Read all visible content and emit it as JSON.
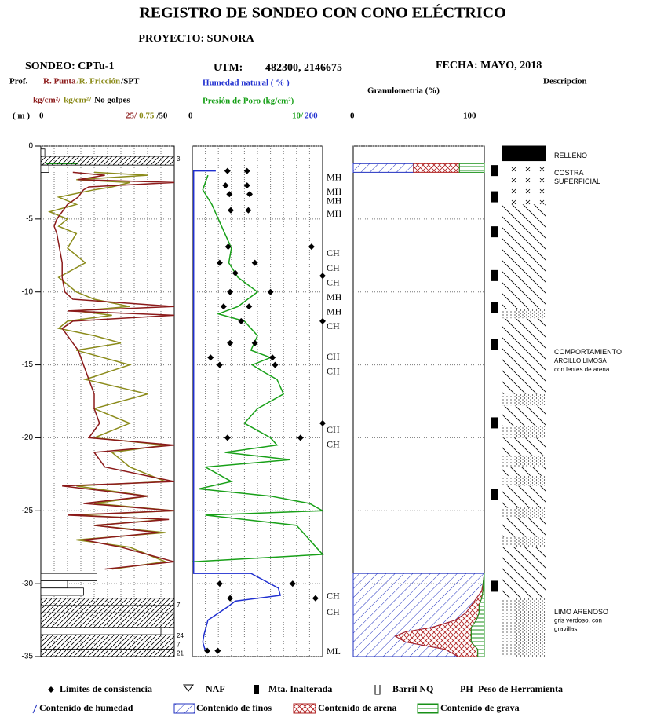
{
  "title": "REGISTRO DE SONDEO CON CONO ELÉCTRICO",
  "project": "PROYECTO: SONORA",
  "sondeo": "SONDEO: CPTu-1",
  "utm_label": "UTM:",
  "utm": "482300, 2146675",
  "fecha": "FECHA: MAYO, 2018",
  "prof_label": "Prof.",
  "depth_unit": "( m )",
  "granulometria_label": "Granulometria (%)",
  "description_label": "Descripcion",
  "chart_data": {
    "type": "log",
    "ylim": [
      0,
      -35
    ],
    "yticks": [
      0,
      -5,
      -10,
      -15,
      -20,
      -25,
      -30,
      -35
    ],
    "naf_depth": -1.2,
    "cpt": {
      "series": [
        {
          "name": "R. Punta",
          "unit": "kg/cm²/",
          "color": "#8b1a1a",
          "xmin": 0,
          "xmax": {
            "value": 25,
            "label": "25/"
          },
          "depth": [
            -1.8,
            -2,
            -2.3,
            -2.5,
            -2.8,
            -3,
            -3.5,
            -4,
            -4.5,
            -5,
            -5.5,
            -6,
            -7,
            -8,
            -9,
            -10,
            -10.5,
            -11,
            -11.3,
            -11.6,
            -12,
            -12.5,
            -13,
            -13.5,
            -14,
            -15,
            -16,
            -17,
            -18,
            -19,
            -20,
            -20.5,
            -21,
            -22,
            -23,
            -23.3,
            -24,
            -24.5,
            -25,
            -25.3,
            -25.6,
            -26,
            -26.5,
            -27,
            -27.5,
            -28,
            -28.5,
            -29
          ],
          "values": [
            6,
            12,
            7,
            25,
            9,
            8,
            7,
            5,
            4,
            3,
            2.5,
            3,
            3.5,
            4,
            4,
            4.5,
            6,
            25,
            5,
            25,
            6,
            4,
            5,
            6,
            7,
            8,
            9,
            10,
            10,
            11,
            9,
            25,
            10,
            12,
            25,
            4,
            20,
            8,
            25,
            5,
            24,
            10,
            22,
            8,
            15,
            20,
            25,
            12
          ]
        },
        {
          "name": "/R. Fricción",
          "unit": "kg/cm²/",
          "color": "#8b8b1a",
          "xmin": 0,
          "xmax": {
            "value": 0.75,
            "label": "0.75"
          },
          "depth": [
            -1.8,
            -2,
            -2.3,
            -2.5,
            -2.8,
            -3,
            -3.5,
            -4,
            -4.5,
            -5,
            -5.5,
            -6,
            -7,
            -8,
            -9,
            -10,
            -10.5,
            -11,
            -11.3,
            -11.6,
            -12,
            -12.5,
            -13,
            -13.5,
            -14,
            -15,
            -16,
            -17,
            -18,
            -19,
            -20,
            -20.5,
            -21,
            -22,
            -23,
            -23.3,
            -24,
            -24.5,
            -25,
            -25.3,
            -25.6,
            -26,
            -26.5,
            -27,
            -27.5,
            -28,
            -28.5,
            -29
          ],
          "values": [
            0.3,
            0.6,
            0.2,
            0.5,
            0.4,
            0.3,
            0.1,
            0.2,
            0.05,
            0.15,
            0.1,
            0.2,
            0.15,
            0.25,
            0.1,
            0.2,
            0.3,
            0.5,
            0.2,
            0.4,
            0.15,
            0.1,
            0.3,
            0.45,
            0.2,
            0.5,
            0.25,
            0.6,
            0.3,
            0.5,
            0.3,
            0.7,
            0.4,
            0.5,
            0.7,
            0.2,
            0.6,
            0.3,
            0.75,
            0.2,
            0.7,
            0.3,
            0.7,
            0.2,
            0.5,
            0.6,
            0.7,
            0.4
          ]
        }
      ]
    },
    "spt": {
      "name": "/SPT",
      "unit": "No golpes",
      "color": "#000000",
      "xmin": 0,
      "xmax": {
        "value": 50,
        "label": "/50"
      },
      "top": [
        -0.2,
        -0.7,
        -1.3,
        -29.3,
        -29.8,
        -30.3,
        -31,
        -31.5,
        -32,
        -32.5,
        -33,
        -33.5,
        -34,
        -34.5
      ],
      "bottom": [
        -0.7,
        -1.3,
        -1.8,
        -29.8,
        -30.3,
        -30.8,
        -31.5,
        -32,
        -32.5,
        -33,
        -33.5,
        -34,
        -34.5,
        -35
      ],
      "values": [
        1.5,
        50,
        3,
        21,
        10,
        16,
        50,
        50,
        50,
        50,
        45,
        50,
        50,
        50
      ],
      "notes": {
        "depth": [
          -0.9,
          -31.5,
          -33.6,
          -34.2,
          -34.8
        ],
        "labels": [
          "3",
          "7",
          "24",
          "7",
          "21"
        ]
      }
    },
    "humidity": {
      "name": "Humedad natural ( % )",
      "color": "#1f2fd0",
      "xmin": 0,
      "xmax": 200,
      "depth": [
        -1.7,
        -1.7,
        -29.3,
        -29.3,
        -30.3,
        -30.8,
        -31.2,
        -31.6,
        -32.5,
        -33.5,
        -34,
        -34.6
      ],
      "values": [
        36,
        2,
        2,
        90,
        132,
        135,
        66,
        54,
        24,
        18,
        16,
        20
      ]
    },
    "pore": {
      "name": "Presión de Poro  (kg/cm²)",
      "color": "#18a018",
      "xmin": 0,
      "xmax": {
        "value": 10,
        "label": "10/"
      },
      "depth": [
        -2,
        -3,
        -4,
        -5,
        -6,
        -7,
        -8,
        -9,
        -10,
        -11,
        -11.5,
        -12,
        -13,
        -14,
        -14.5,
        -15,
        -15.5,
        -16,
        -17,
        -17.5,
        -18,
        -19,
        -20,
        -20.5,
        -21,
        -21.5,
        -22,
        -23,
        -23.5,
        -24,
        -24.5,
        -25,
        -25.3,
        -26,
        -27,
        -28,
        -28.5
      ],
      "values": [
        1.2,
        0.8,
        1.5,
        2,
        2.5,
        3,
        2.8,
        3.5,
        5,
        3.5,
        2,
        4,
        5,
        4.5,
        6,
        4.6,
        5.5,
        6.5,
        7,
        6,
        5,
        4,
        6,
        6.5,
        2.5,
        7.5,
        1,
        3,
        0.5,
        6,
        9,
        10,
        1,
        8,
        9,
        10,
        0
      ]
    },
    "limits": {
      "depth": [
        -1.7,
        -1.7,
        -2.7,
        -2.7,
        -3.3,
        -3.3,
        -4.4,
        -4.4,
        -6.9,
        -6.9,
        -8,
        -8,
        -8.7,
        -8.9,
        -10,
        -10,
        -11,
        -11,
        -12,
        -12,
        -13.5,
        -13.5,
        -14.5,
        -14.5,
        -15,
        -15,
        -19,
        -20,
        -20,
        -30,
        -30,
        -31,
        -31,
        -34.6,
        -34.6
      ],
      "values": [
        54,
        84,
        51,
        84,
        57,
        88,
        59,
        86,
        55,
        183,
        42,
        96,
        66,
        200,
        58,
        120,
        48,
        87,
        75,
        200,
        58,
        96,
        28,
        123,
        42,
        127,
        200,
        54,
        166,
        42,
        154,
        58,
        189,
        23,
        39
      ]
    },
    "classes": {
      "depth": [
        -2.2,
        -3.2,
        -3.8,
        -4.7,
        -7.4,
        -8.4,
        -9.4,
        -10.4,
        -11.4,
        -12.4,
        -14.5,
        -15.5,
        -19.5,
        -20.5,
        -30.9,
        -32,
        -34.7
      ],
      "labels": [
        "MH",
        "MH",
        "MH",
        "MH",
        "CH",
        "CH",
        "CH",
        "MH",
        "MH",
        "CH",
        "CH",
        "CH",
        "CH",
        "CH",
        "CH",
        "CH",
        "ML"
      ]
    },
    "grain": {
      "xmin": 0,
      "xmax": 100,
      "samples": [
        {
          "depth": [
            -1.2,
            -1.8
          ],
          "fines": [
            46,
            46
          ],
          "sand": [
            35,
            35
          ]
        },
        {
          "depth": [
            -29.3,
            -30,
            -30.5,
            -31,
            -31.5,
            -32,
            -32.5,
            -33,
            -33.3,
            -33.6,
            -34,
            -34.5,
            -35
          ],
          "fines": [
            100,
            99,
            98,
            94,
            90,
            86,
            78,
            60,
            40,
            32,
            40,
            70,
            80
          ],
          "sand": [
            0,
            0,
            1,
            4,
            6,
            10,
            16,
            30,
            50,
            58,
            50,
            25,
            15
          ]
        }
      ]
    },
    "description": {
      "layers": [
        {
          "top": 0,
          "bottom": -1,
          "pattern": "fill",
          "lines": [
            "RELLENO"
          ]
        },
        {
          "top": -1,
          "bottom": -4,
          "pattern": "cross",
          "lines": [
            "COSTRA",
            "SUPERFICIAL"
          ]
        },
        {
          "top": -4,
          "bottom": -31,
          "pattern": "hatch",
          "lines": [
            "COMPORTAMIENTO",
            "ARCILLO LIMOSA",
            "con lentes de arena."
          ]
        },
        {
          "top": -31,
          "bottom": -35,
          "pattern": "dots",
          "lines": [
            "LIMO ARENOSO",
            "gris verdoso, con",
            "gravillas."
          ]
        }
      ],
      "lenses": {
        "top": [
          -11.2,
          -17,
          -19.2,
          -21.2,
          -22.6,
          -24.8,
          -26.8
        ],
        "bottom": [
          -11.8,
          -17.8,
          -20,
          -22,
          -23.3,
          -25.5,
          -27.5
        ]
      },
      "samples": {
        "top": [
          -1.3,
          -3.1,
          -5.5,
          -8.5,
          -10.7,
          -13.2,
          -18.6,
          -23.5,
          -29.8
        ]
      }
    }
  },
  "legend": {
    "limits": "Limites de consistencia",
    "naf": "NAF",
    "sample": "Mta. Inalterada",
    "barrel": "Barril NQ",
    "ph_code": "PH",
    "ph": "Peso de Herramienta",
    "humidity": "Contenido de humedad",
    "fines": "Contenido de finos",
    "sand": "Contenido de arena",
    "gravel": "Contenido de grava"
  }
}
